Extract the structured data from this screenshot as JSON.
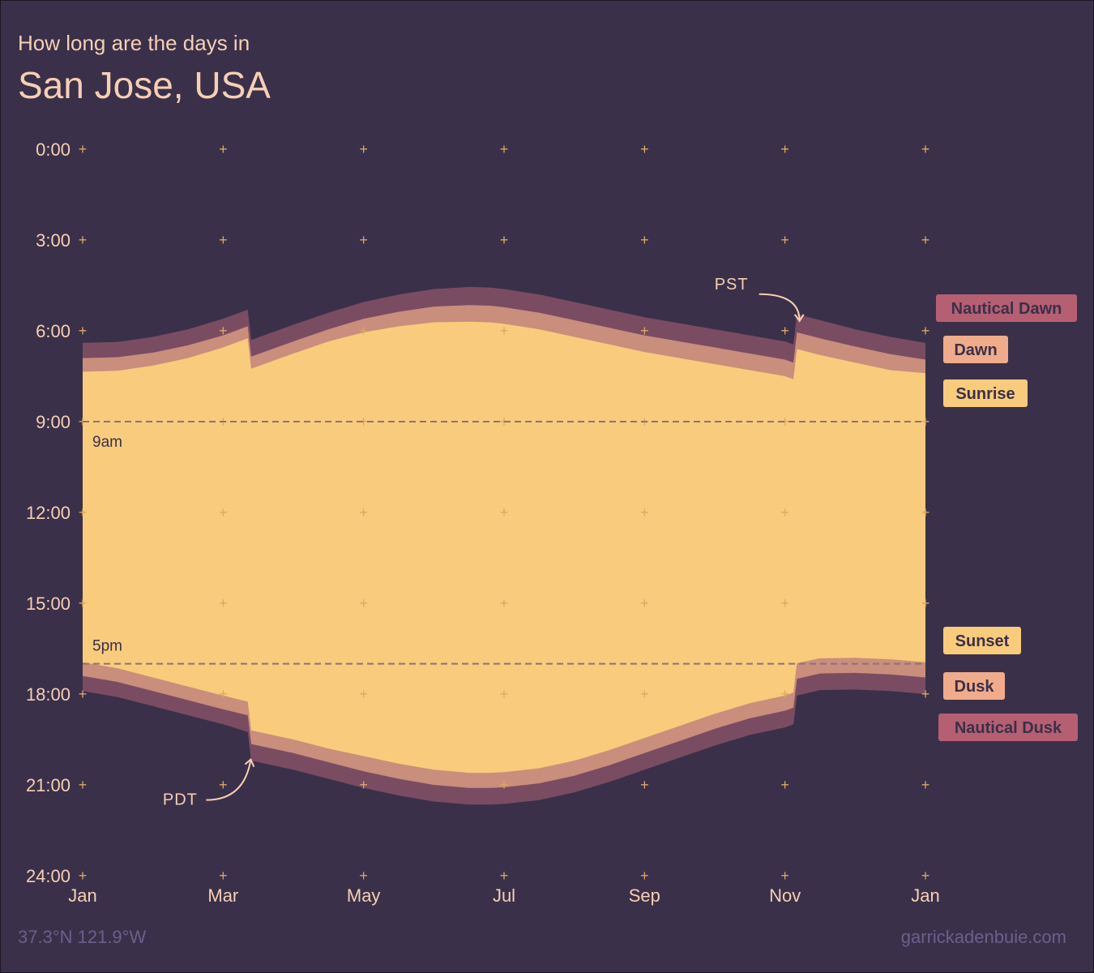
{
  "header": {
    "subtitle": "How long are the days in",
    "title": "San Jose, USA"
  },
  "footer": {
    "coords": "37.3°N 121.9°W",
    "credit": "garrickadenbuie.com"
  },
  "colors": {
    "background": "#3a3049",
    "daylight": "#f9cb7c",
    "civil_twilight": "#c98e7c",
    "nautical_twilight": "#7a4c62",
    "text": "#f6cfb5",
    "grid": "#d9a866",
    "caption": "#6c5f8d"
  },
  "chart_data": {
    "type": "area",
    "x_unit": "month of year",
    "y_unit": "hour of day (local clock time, 24h)",
    "x_range": [
      1,
      13
    ],
    "y_range": [
      0,
      24
    ],
    "y_reversed": true,
    "x_ticks": [
      {
        "pos": 1,
        "label": "Jan"
      },
      {
        "pos": 3,
        "label": "Mar"
      },
      {
        "pos": 5,
        "label": "May"
      },
      {
        "pos": 7,
        "label": "Jul"
      },
      {
        "pos": 9,
        "label": "Sep"
      },
      {
        "pos": 11,
        "label": "Nov"
      },
      {
        "pos": 13,
        "label": "Jan"
      }
    ],
    "y_ticks": [
      {
        "value": 0,
        "label": "0:00"
      },
      {
        "value": 3,
        "label": "3:00"
      },
      {
        "value": 6,
        "label": "6:00"
      },
      {
        "value": 9,
        "label": "9:00"
      },
      {
        "value": 12,
        "label": "12:00"
      },
      {
        "value": 15,
        "label": "15:00"
      },
      {
        "value": 18,
        "label": "18:00"
      },
      {
        "value": 21,
        "label": "21:00"
      },
      {
        "value": 24,
        "label": "24:00"
      }
    ],
    "x": [
      1.0,
      1.5,
      2.0,
      2.5,
      3.0,
      3.35,
      3.4,
      4.0,
      4.5,
      5.0,
      5.5,
      6.0,
      6.5,
      6.8,
      7.0,
      7.5,
      8.0,
      8.5,
      9.0,
      9.5,
      10.0,
      10.5,
      11.0,
      11.12,
      11.17,
      11.5,
      12.0,
      12.5,
      13.0
    ],
    "series": [
      {
        "name": "Nautical Dawn",
        "values": [
          6.4,
          6.37,
          6.2,
          5.95,
          5.6,
          5.3,
          6.3,
          5.8,
          5.4,
          5.05,
          4.8,
          4.62,
          4.55,
          4.57,
          4.62,
          4.8,
          5.05,
          5.3,
          5.55,
          5.75,
          5.95,
          6.15,
          6.35,
          6.45,
          5.45,
          5.65,
          5.95,
          6.2,
          6.4
        ]
      },
      {
        "name": "Dawn",
        "values": [
          6.9,
          6.87,
          6.72,
          6.48,
          6.15,
          5.85,
          6.85,
          6.35,
          5.95,
          5.6,
          5.37,
          5.2,
          5.15,
          5.17,
          5.22,
          5.4,
          5.65,
          5.9,
          6.15,
          6.35,
          6.55,
          6.75,
          6.95,
          7.05,
          6.05,
          6.25,
          6.52,
          6.77,
          6.95
        ]
      },
      {
        "name": "Sunrise",
        "values": [
          7.35,
          7.32,
          7.15,
          6.9,
          6.55,
          6.25,
          7.25,
          6.75,
          6.35,
          6.05,
          5.85,
          5.72,
          5.7,
          5.72,
          5.77,
          5.95,
          6.2,
          6.45,
          6.7,
          6.9,
          7.1,
          7.3,
          7.5,
          7.6,
          6.6,
          6.8,
          7.05,
          7.3,
          7.4
        ]
      },
      {
        "name": "Sunset",
        "values": [
          16.95,
          17.15,
          17.45,
          17.75,
          18.05,
          18.25,
          19.2,
          19.5,
          19.8,
          20.05,
          20.3,
          20.5,
          20.6,
          20.6,
          20.58,
          20.45,
          20.2,
          19.85,
          19.45,
          19.05,
          18.65,
          18.3,
          18.05,
          17.95,
          16.98,
          16.82,
          16.8,
          16.85,
          16.95
        ]
      },
      {
        "name": "Dusk",
        "values": [
          17.4,
          17.6,
          17.9,
          18.2,
          18.5,
          18.7,
          19.65,
          19.95,
          20.25,
          20.55,
          20.8,
          21.0,
          21.1,
          21.1,
          21.08,
          20.95,
          20.7,
          20.35,
          19.95,
          19.55,
          19.15,
          18.8,
          18.55,
          18.45,
          17.5,
          17.32,
          17.3,
          17.35,
          17.45
        ]
      },
      {
        "name": "Nautical Dusk",
        "values": [
          17.9,
          18.1,
          18.4,
          18.7,
          19.0,
          19.25,
          20.2,
          20.5,
          20.8,
          21.1,
          21.35,
          21.55,
          21.65,
          21.65,
          21.63,
          21.5,
          21.25,
          20.9,
          20.5,
          20.1,
          19.7,
          19.35,
          19.1,
          19.0,
          18.05,
          17.87,
          17.85,
          17.9,
          18.0
        ]
      }
    ],
    "reference_lines": [
      {
        "value": 9,
        "label": "9am"
      },
      {
        "value": 17,
        "label": "5pm"
      }
    ],
    "annotations": [
      {
        "label": "PDT",
        "x": 3.37,
        "y": 20.0
      },
      {
        "label": "PST",
        "x": 11.15,
        "y": 5.7
      }
    ],
    "grid": "plus markers",
    "legend_position": "right"
  }
}
